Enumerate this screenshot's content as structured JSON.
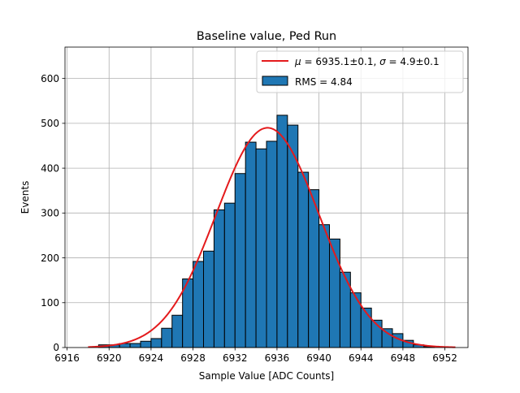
{
  "chart_data": {
    "type": "bar",
    "title": "Baseline value, Ped Run",
    "xlabel": "Sample Value [ADC Counts]",
    "ylabel": "Events",
    "xlim": [
      6915.8,
      6954.2
    ],
    "ylim": [
      0,
      670
    ],
    "grid": true,
    "legend_position": "top-right",
    "xticks": [
      6916,
      6920,
      6924,
      6928,
      6932,
      6936,
      6940,
      6944,
      6948,
      6952
    ],
    "yticks": [
      0,
      100,
      200,
      300,
      400,
      500,
      600
    ],
    "bin_width": 1,
    "histogram": {
      "name": "RMS = 4.84",
      "color": "#1f77b4",
      "bin_lefts": [
        6919,
        6920,
        6921,
        6922,
        6923,
        6924,
        6925,
        6926,
        6927,
        6928,
        6929,
        6930,
        6931,
        6932,
        6933,
        6934,
        6935,
        6936,
        6937,
        6938,
        6939,
        6940,
        6941,
        6942,
        6943,
        6944,
        6945,
        6946,
        6947,
        6948,
        6949,
        6950
      ],
      "counts": [
        6,
        6,
        9,
        9,
        14,
        20,
        43,
        72,
        153,
        192,
        215,
        307,
        322,
        388,
        458,
        443,
        460,
        518,
        496,
        391,
        352,
        274,
        242,
        168,
        122,
        88,
        61,
        42,
        31,
        16,
        6,
        2
      ]
    },
    "fit": {
      "name": "$\\mu = 6935.1\\pm0.1$, $\\sigma = 4.9\\pm0.1$",
      "legend_mu": "μ",
      "legend_eq1": " = 6935.1±0.1, ",
      "legend_sigma": "σ",
      "legend_eq2": " = 4.9±0.1",
      "color": "#e41a1c",
      "type": "gaussian",
      "mu": 6935.1,
      "sigma": 4.9,
      "amplitude": 490,
      "x_range": [
        6918,
        6953
      ]
    }
  }
}
